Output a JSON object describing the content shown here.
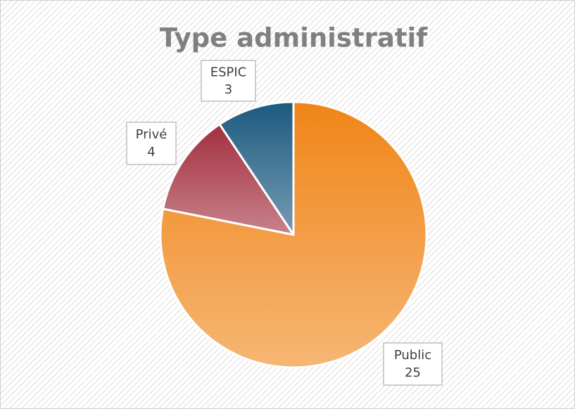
{
  "chart_data": {
    "type": "pie",
    "title": "Type administratif",
    "categories": [
      "Public",
      "Privé",
      "ESPIC"
    ],
    "values": [
      25,
      4,
      3
    ],
    "colors": [
      "#f08518",
      "#a32f3e",
      "#1c5a80"
    ]
  }
}
